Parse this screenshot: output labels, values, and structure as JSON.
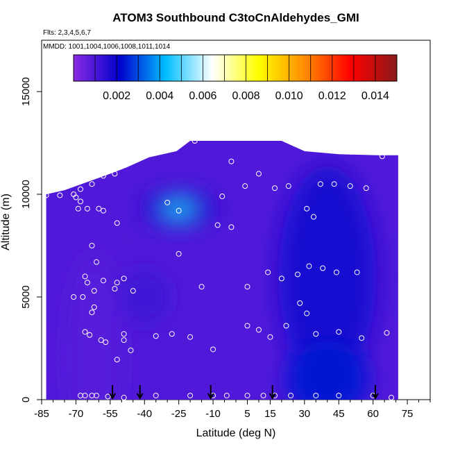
{
  "chart_data": {
    "type": "heatmap",
    "title": "ATOM3 Southbound C3toCnAldehydes_GMI",
    "flights_label": "Flts: 2,3,4,5,6,7",
    "dates_label": "MMDD: 1001,1004,1006,1008,1011,1014",
    "xlabel": "Latitude (deg N)",
    "ylabel": "Altitude (m)",
    "xlim": [
      -85,
      85
    ],
    "ylim": [
      0,
      17500
    ],
    "x_ticks": [
      -85,
      -70,
      -55,
      -40,
      -25,
      -10,
      5,
      15,
      30,
      45,
      60,
      75
    ],
    "y_ticks": [
      0,
      5000,
      10000,
      15000
    ],
    "colorbar": {
      "range": [
        0,
        0.015
      ],
      "ticks": [
        "0.002",
        "0.004",
        "0.006",
        "0.008",
        "0.010",
        "0.012",
        "0.014"
      ],
      "colors": [
        "#8a2be2",
        "#0000cd",
        "#00bfff",
        "#ffffff",
        "#ffff00",
        "#ff8c00",
        "#ff0000",
        "#8b1a1a"
      ]
    },
    "field_regions": [
      {
        "lat": -62,
        "alt": 2000,
        "value": 0.0008
      },
      {
        "lat": -40,
        "alt": 5000,
        "value": 0.0012
      },
      {
        "lat": -25,
        "alt": 9300,
        "value": 0.0045
      },
      {
        "lat": 5,
        "alt": 8000,
        "value": 0.0008
      },
      {
        "lat": 40,
        "alt": 6000,
        "value": 0.0018
      },
      {
        "lat": 40,
        "alt": 1000,
        "value": 0.0024
      }
    ],
    "measurement_points": [
      [
        -83,
        9950
      ],
      [
        -77,
        9950
      ],
      [
        -71,
        10000
      ],
      [
        -68,
        10250
      ],
      [
        -70,
        9850
      ],
      [
        -68,
        9650
      ],
      [
        -69,
        9300
      ],
      [
        -65,
        9300
      ],
      [
        -63,
        10500
      ],
      [
        -58,
        10900
      ],
      [
        -53,
        11000
      ],
      [
        -60,
        9300
      ],
      [
        -58,
        9200
      ],
      [
        -52,
        8600
      ],
      [
        -63,
        7500
      ],
      [
        -61,
        6700
      ],
      [
        -66,
        6000
      ],
      [
        -65,
        5700
      ],
      [
        -58,
        5800
      ],
      [
        -52,
        5700
      ],
      [
        -49,
        5900
      ],
      [
        -45,
        5300
      ],
      [
        -53,
        5400
      ],
      [
        -62,
        5300
      ],
      [
        -71,
        5000
      ],
      [
        -67,
        5000
      ],
      [
        -62,
        4500
      ],
      [
        -63,
        4250
      ],
      [
        -66,
        3300
      ],
      [
        -64,
        3150
      ],
      [
        -59,
        2900
      ],
      [
        -57,
        2800
      ],
      [
        -49,
        3200
      ],
      [
        -49,
        2900
      ],
      [
        -46,
        2400
      ],
      [
        -52,
        1950
      ],
      [
        -35,
        3100
      ],
      [
        -28,
        3200
      ],
      [
        -20,
        3050
      ],
      [
        -15,
        5500
      ],
      [
        -10,
        2450
      ],
      [
        -6,
        9900
      ],
      [
        -2,
        8400
      ],
      [
        -8,
        8500
      ],
      [
        -25,
        7100
      ],
      [
        -30,
        9600
      ],
      [
        -25,
        9200
      ],
      [
        -18,
        12600
      ],
      [
        -2,
        11600
      ],
      [
        10,
        11000
      ],
      [
        4,
        10400
      ],
      [
        17,
        10300
      ],
      [
        23,
        10400
      ],
      [
        25,
        12550
      ],
      [
        31,
        9300
      ],
      [
        34,
        8900
      ],
      [
        37,
        10500
      ],
      [
        43,
        10500
      ],
      [
        50,
        10400
      ],
      [
        57,
        10300
      ],
      [
        64,
        11850
      ],
      [
        32,
        6500
      ],
      [
        38,
        6400
      ],
      [
        44,
        6200
      ],
      [
        53,
        6200
      ],
      [
        14,
        6200
      ],
      [
        20,
        5900
      ],
      [
        27,
        6100
      ],
      [
        28,
        4700
      ],
      [
        31,
        4200
      ],
      [
        35,
        3200
      ],
      [
        22,
        3600
      ],
      [
        45,
        3300
      ],
      [
        55,
        3000
      ],
      [
        66,
        3250
      ],
      [
        5,
        5500
      ],
      [
        5,
        3600
      ],
      [
        10,
        3400
      ],
      [
        15,
        3050
      ],
      [
        -68,
        200
      ],
      [
        -66,
        200
      ],
      [
        -63,
        200
      ],
      [
        -61,
        200
      ],
      [
        -56,
        150
      ],
      [
        -49,
        100
      ],
      [
        -35,
        200
      ],
      [
        -20,
        200
      ],
      [
        -10,
        200
      ],
      [
        -4,
        200
      ],
      [
        5,
        200
      ],
      [
        12,
        200
      ],
      [
        17,
        200
      ],
      [
        24,
        200
      ],
      [
        35,
        200
      ],
      [
        45,
        200
      ],
      [
        60,
        200
      ],
      [
        68,
        100
      ]
    ],
    "arrows": [
      -54,
      -42,
      -11,
      16,
      61
    ]
  }
}
